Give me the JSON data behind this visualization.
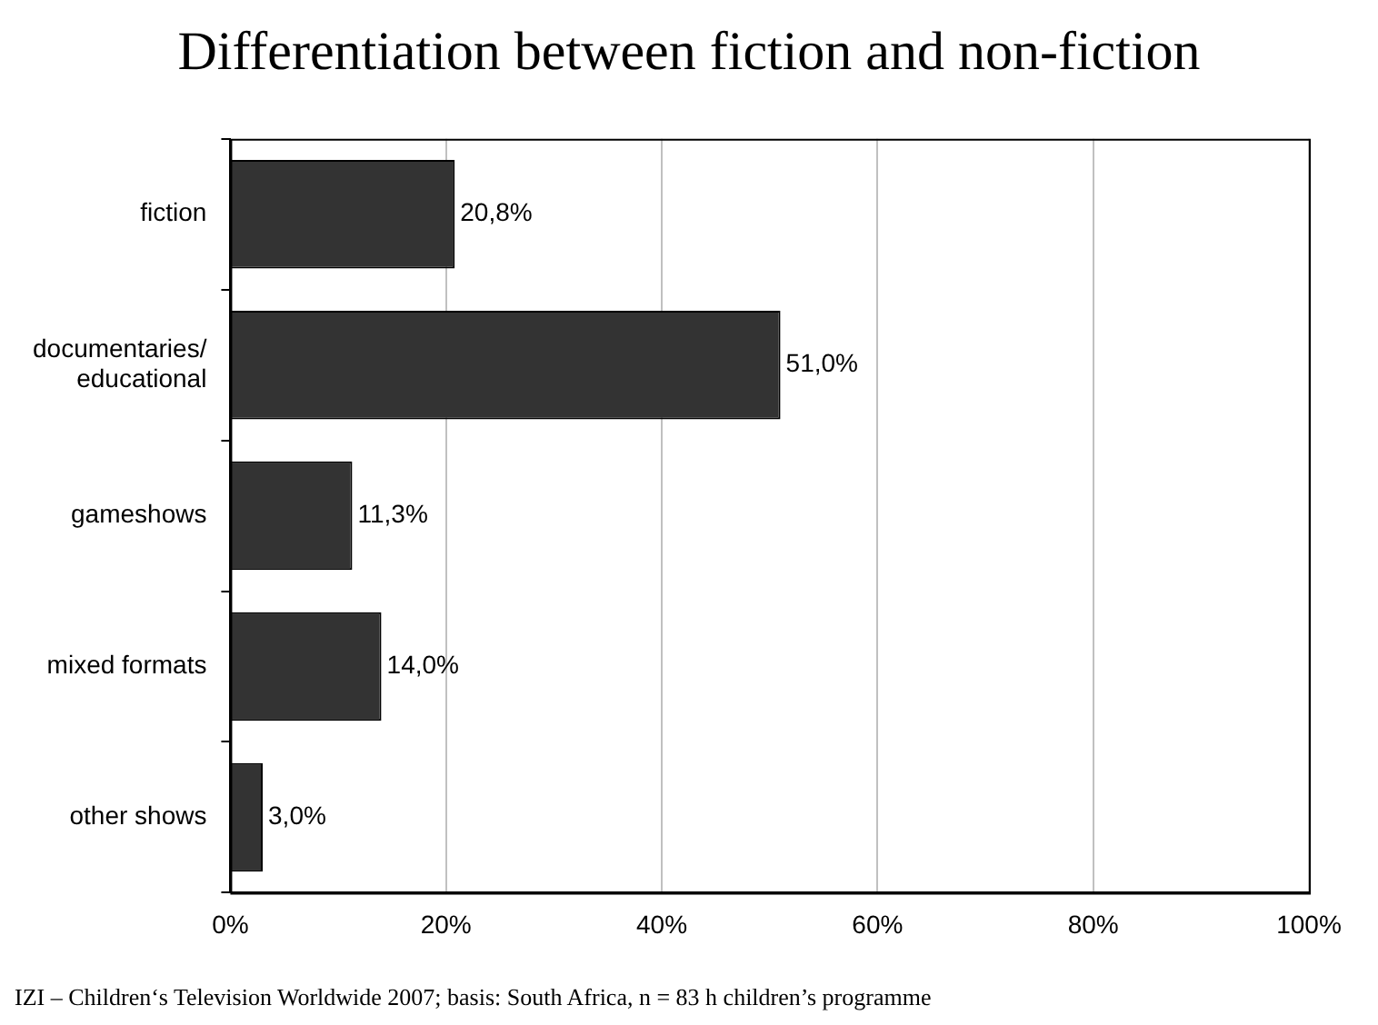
{
  "chart_data": {
    "type": "bar",
    "orientation": "horizontal",
    "title": "Differentiation between fiction and non-fiction",
    "categories": [
      "fiction",
      "documentaries/\neducational",
      "gameshows",
      "mixed formats",
      "other shows"
    ],
    "values": [
      20.8,
      51.0,
      11.3,
      14.0,
      3.0
    ],
    "value_labels": [
      "20,8%",
      "51,0%",
      "11,3%",
      "14,0%",
      "3,0%"
    ],
    "color": "#333333",
    "xlim": [
      0,
      100
    ],
    "xticks": [
      {
        "value": 0,
        "label": "0%"
      },
      {
        "value": 20,
        "label": "20%"
      },
      {
        "value": 40,
        "label": "40%"
      },
      {
        "value": 60,
        "label": "60%"
      },
      {
        "value": 80,
        "label": "80%"
      },
      {
        "value": 100,
        "label": "100%"
      }
    ],
    "grid": "x",
    "legend": false,
    "annotations": [
      "IZI – Children‘s Television Worldwide 2007; basis: South Africa, n = 83 h children’s programme"
    ]
  }
}
